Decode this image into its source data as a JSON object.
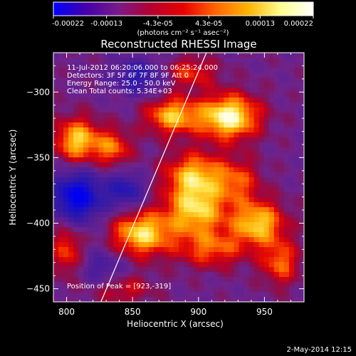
{
  "chart_data": {
    "type": "heatmap",
    "title": "Reconstructed RHESSI Image",
    "xlabel": "Heliocentric X (arcsec)",
    "ylabel": "Heliocentric Y (arcsec)",
    "xlim": [
      790,
      980
    ],
    "ylim": [
      -460,
      -270
    ],
    "x_ticks": [
      800,
      850,
      900,
      950
    ],
    "y_ticks": [
      -300,
      -350,
      -400,
      -450
    ],
    "colorbar": {
      "min": -0.00022,
      "max": 0.00022,
      "tick_labels": [
        "-0.00022",
        "-0.00013",
        "-4.3e-05",
        "4.3e-05",
        "0.00013",
        "0.00022"
      ],
      "units_label": "(photons cm⁻² s⁻¹ asec⁻²)",
      "colors": [
        "#0000ff",
        "#4400aa",
        "#7a1a8a",
        "#b4002f",
        "#e60000",
        "#ff6600",
        "#ffb400",
        "#ffff90",
        "#ffffff"
      ]
    },
    "annotations": [
      "11-Jul-2012 06:20:06.000 to 06:25:24.000",
      "Detectors: 3F 5F 6F 7F 8F 9F  Att 0",
      "Energy Range: 25.0 - 50.0 keV",
      "Clean    Total counts: 5.34E+03"
    ],
    "peak_label": "Position of Peak = [923,-319]",
    "peak": [
      923,
      -319
    ],
    "limb_line": [
      [
        826,
        -460
      ],
      [
        906,
        -270
      ]
    ],
    "blobs": [
      {
        "x": 923,
        "y": -319,
        "amp": 1.0,
        "sx": 16,
        "sy": 12
      },
      {
        "x": 880,
        "y": -318,
        "amp": 0.75,
        "sx": 14,
        "sy": 10
      },
      {
        "x": 808,
        "y": -337,
        "amp": 0.8,
        "sx": 12,
        "sy": 12
      },
      {
        "x": 835,
        "y": -343,
        "amp": 0.55,
        "sx": 10,
        "sy": 10
      },
      {
        "x": 897,
        "y": -363,
        "amp": 0.7,
        "sx": 16,
        "sy": 12
      },
      {
        "x": 930,
        "y": -368,
        "amp": 0.45,
        "sx": 12,
        "sy": 12
      },
      {
        "x": 857,
        "y": -408,
        "amp": 0.85,
        "sx": 16,
        "sy": 12
      },
      {
        "x": 898,
        "y": -390,
        "amp": 0.8,
        "sx": 16,
        "sy": 14
      },
      {
        "x": 945,
        "y": -400,
        "amp": 0.8,
        "sx": 14,
        "sy": 12
      },
      {
        "x": 962,
        "y": -430,
        "amp": 0.55,
        "sx": 10,
        "sy": 12
      },
      {
        "x": 910,
        "y": -420,
        "amp": 0.5,
        "sx": 18,
        "sy": 10
      },
      {
        "x": 800,
        "y": -420,
        "amp": 0.5,
        "sx": 8,
        "sy": 14
      },
      {
        "x": 842,
        "y": -450,
        "amp": 0.35,
        "sx": 16,
        "sy": 8
      },
      {
        "x": 893,
        "y": -285,
        "amp": 0.45,
        "sx": 14,
        "sy": 8
      },
      {
        "x": 808,
        "y": -380,
        "amp": -0.9,
        "sx": 14,
        "sy": 14
      },
      {
        "x": 845,
        "y": -375,
        "amp": -0.55,
        "sx": 10,
        "sy": 10
      },
      {
        "x": 855,
        "y": -288,
        "amp": -0.5,
        "sx": 14,
        "sy": 10
      },
      {
        "x": 828,
        "y": -435,
        "amp": -0.35,
        "sx": 12,
        "sy": 10
      }
    ]
  },
  "footer": {
    "date": "2-May-2014 12:15"
  }
}
